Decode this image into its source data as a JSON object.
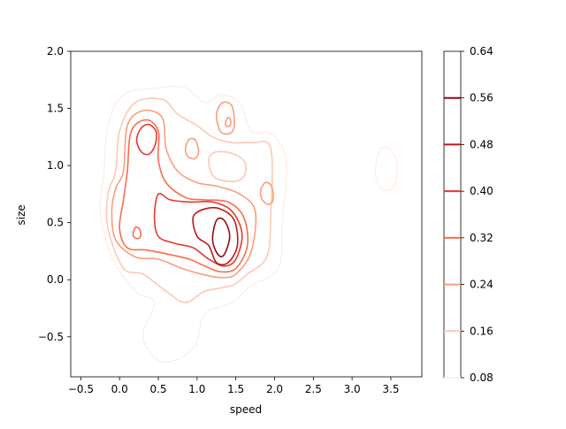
{
  "chart_data": {
    "type": "contour",
    "xlabel": "speed",
    "ylabel": "size",
    "xlim": [
      -0.63,
      3.9
    ],
    "ylim": [
      -0.85,
      2.0
    ],
    "x_ticks": [
      -0.5,
      0.0,
      0.5,
      1.0,
      1.5,
      2.0,
      2.5,
      3.0,
      3.5
    ],
    "x_tick_labels": [
      "−0.5",
      "0.0",
      "0.5",
      "1.0",
      "1.5",
      "2.0",
      "2.5",
      "3.0",
      "3.5"
    ],
    "y_ticks": [
      -0.5,
      0.0,
      0.5,
      1.0,
      1.5,
      2.0
    ],
    "y_tick_labels": [
      "−0.5",
      "0.0",
      "0.5",
      "1.0",
      "1.5",
      "2.0"
    ],
    "colorbar": {
      "ticks": [
        0.08,
        0.16,
        0.24,
        0.32,
        0.4,
        0.48,
        0.56,
        0.64
      ],
      "tick_labels": [
        "0.08",
        "0.16",
        "0.24",
        "0.32",
        "0.40",
        "0.48",
        "0.56",
        "0.64"
      ],
      "levels": [
        0.08,
        0.16,
        0.24,
        0.32,
        0.4,
        0.48,
        0.56
      ],
      "level_colors": [
        "#fff0e8",
        "#fcc9b4",
        "#fc9c7d",
        "#f96c4d",
        "#e33a2d",
        "#be171b",
        "#8b0f14"
      ]
    },
    "colormap": "Reds",
    "contours": [
      {
        "level": 0.08,
        "points": [
          [
            -0.2,
            0.95
          ],
          [
            -0.15,
            1.35
          ],
          [
            0.05,
            1.62
          ],
          [
            0.5,
            1.68
          ],
          [
            0.85,
            1.68
          ],
          [
            1.1,
            1.55
          ],
          [
            1.3,
            1.62
          ],
          [
            1.55,
            1.55
          ],
          [
            1.7,
            1.3
          ],
          [
            1.95,
            1.28
          ],
          [
            2.15,
            1.05
          ],
          [
            2.1,
            0.5
          ],
          [
            2.05,
            0.1
          ],
          [
            1.7,
            -0.05
          ],
          [
            1.45,
            -0.2
          ],
          [
            1.1,
            -0.3
          ],
          [
            0.95,
            -0.6
          ],
          [
            0.55,
            -0.72
          ],
          [
            0.3,
            -0.5
          ],
          [
            0.45,
            -0.2
          ],
          [
            0.2,
            -0.1
          ],
          [
            -0.1,
            0.2
          ],
          [
            -0.25,
            0.6
          ]
        ]
      },
      {
        "level": 0.16,
        "points": [
          [
            -0.05,
            0.95
          ],
          [
            0.0,
            1.3
          ],
          [
            0.2,
            1.55
          ],
          [
            0.55,
            1.58
          ],
          [
            0.75,
            1.45
          ],
          [
            1.0,
            1.35
          ],
          [
            1.2,
            1.25
          ],
          [
            1.45,
            1.2
          ],
          [
            1.7,
            1.2
          ],
          [
            1.95,
            1.15
          ],
          [
            1.95,
            0.55
          ],
          [
            1.9,
            0.2
          ],
          [
            1.65,
            0.05
          ],
          [
            1.45,
            -0.05
          ],
          [
            1.1,
            -0.1
          ],
          [
            0.85,
            -0.2
          ],
          [
            0.6,
            -0.1
          ],
          [
            0.3,
            0.05
          ],
          [
            0.05,
            0.1
          ],
          [
            -0.15,
            0.45
          ],
          [
            -0.15,
            0.75
          ]
        ]
      },
      {
        "level": 0.24,
        "points": [
          [
            0.05,
            0.95
          ],
          [
            0.1,
            1.35
          ],
          [
            0.3,
            1.48
          ],
          [
            0.55,
            1.42
          ],
          [
            0.6,
            1.15
          ],
          [
            0.75,
            0.95
          ],
          [
            1.0,
            0.85
          ],
          [
            1.25,
            0.82
          ],
          [
            1.55,
            0.75
          ],
          [
            1.75,
            0.6
          ],
          [
            1.7,
            0.25
          ],
          [
            1.5,
            0.05
          ],
          [
            1.3,
            0.02
          ],
          [
            1.05,
            0.05
          ],
          [
            0.8,
            0.1
          ],
          [
            0.5,
            0.18
          ],
          [
            0.2,
            0.2
          ],
          [
            -0.05,
            0.35
          ],
          [
            -0.1,
            0.6
          ],
          [
            -0.05,
            0.8
          ]
        ]
      },
      {
        "level": 0.32,
        "points": [
          [
            0.1,
            0.95
          ],
          [
            0.15,
            1.3
          ],
          [
            0.35,
            1.4
          ],
          [
            0.5,
            1.3
          ],
          [
            0.5,
            1.05
          ],
          [
            0.6,
            0.85
          ],
          [
            0.85,
            0.72
          ],
          [
            1.1,
            0.7
          ],
          [
            1.4,
            0.68
          ],
          [
            1.6,
            0.55
          ],
          [
            1.65,
            0.3
          ],
          [
            1.5,
            0.1
          ],
          [
            1.3,
            0.07
          ],
          [
            1.1,
            0.12
          ],
          [
            0.9,
            0.18
          ],
          [
            0.65,
            0.22
          ],
          [
            0.35,
            0.26
          ],
          [
            0.1,
            0.28
          ],
          [
            0.0,
            0.45
          ],
          [
            0.05,
            0.7
          ]
        ]
      },
      {
        "level": 0.4,
        "points": [
          [
            0.5,
            0.75
          ],
          [
            0.65,
            0.7
          ],
          [
            0.9,
            0.68
          ],
          [
            1.2,
            0.68
          ],
          [
            1.45,
            0.6
          ],
          [
            1.58,
            0.4
          ],
          [
            1.5,
            0.18
          ],
          [
            1.35,
            0.12
          ],
          [
            1.15,
            0.18
          ],
          [
            0.95,
            0.28
          ],
          [
            0.7,
            0.32
          ],
          [
            0.5,
            0.38
          ],
          [
            0.45,
            0.55
          ]
        ]
      },
      {
        "level": 0.48,
        "points": [
          [
            0.95,
            0.55
          ],
          [
            1.1,
            0.62
          ],
          [
            1.3,
            0.62
          ],
          [
            1.48,
            0.52
          ],
          [
            1.52,
            0.3
          ],
          [
            1.4,
            0.15
          ],
          [
            1.25,
            0.15
          ],
          [
            1.15,
            0.3
          ],
          [
            1.0,
            0.38
          ]
        ]
      },
      {
        "level": 0.56,
        "points": [
          [
            1.25,
            0.52
          ],
          [
            1.35,
            0.52
          ],
          [
            1.42,
            0.38
          ],
          [
            1.35,
            0.22
          ],
          [
            1.27,
            0.22
          ],
          [
            1.2,
            0.35
          ]
        ]
      },
      {
        "level": 0.4,
        "points": [
          [
            0.22,
            1.22
          ],
          [
            0.27,
            1.32
          ],
          [
            0.37,
            1.36
          ],
          [
            0.47,
            1.3
          ],
          [
            0.46,
            1.18
          ],
          [
            0.38,
            1.1
          ],
          [
            0.28,
            1.12
          ]
        ]
      },
      {
        "level": 0.24,
        "points": [
          [
            1.25,
            1.45
          ],
          [
            1.33,
            1.55
          ],
          [
            1.45,
            1.52
          ],
          [
            1.48,
            1.35
          ],
          [
            1.42,
            1.28
          ],
          [
            1.3,
            1.3
          ]
        ]
      },
      {
        "level": 0.24,
        "points": [
          [
            0.85,
            1.15
          ],
          [
            0.9,
            1.23
          ],
          [
            0.98,
            1.22
          ],
          [
            1.02,
            1.12
          ],
          [
            0.97,
            1.06
          ],
          [
            0.88,
            1.08
          ]
        ]
      },
      {
        "level": 0.24,
        "points": [
          [
            1.82,
            0.78
          ],
          [
            1.88,
            0.85
          ],
          [
            1.96,
            0.82
          ],
          [
            1.98,
            0.7
          ],
          [
            1.92,
            0.66
          ],
          [
            1.84,
            0.7
          ]
        ]
      },
      {
        "level": 0.32,
        "points": [
          [
            0.18,
            0.42
          ],
          [
            0.21,
            0.46
          ],
          [
            0.26,
            0.44
          ],
          [
            0.27,
            0.38
          ],
          [
            0.23,
            0.36
          ],
          [
            0.18,
            0.38
          ]
        ]
      },
      {
        "level": 0.16,
        "points": [
          [
            1.15,
            1.05
          ],
          [
            1.25,
            1.12
          ],
          [
            1.48,
            1.1
          ],
          [
            1.62,
            1.02
          ],
          [
            1.6,
            0.9
          ],
          [
            1.45,
            0.86
          ],
          [
            1.22,
            0.9
          ]
        ]
      },
      {
        "level": 0.24,
        "points": [
          [
            1.37,
            1.38
          ],
          [
            1.4,
            1.42
          ],
          [
            1.43,
            1.4
          ],
          [
            1.43,
            1.36
          ],
          [
            1.4,
            1.34
          ],
          [
            1.37,
            1.35
          ]
        ]
      },
      {
        "level": 0.08,
        "points": [
          [
            3.3,
            0.95
          ],
          [
            3.35,
            1.12
          ],
          [
            3.45,
            1.16
          ],
          [
            3.57,
            1.05
          ],
          [
            3.56,
            0.85
          ],
          [
            3.45,
            0.78
          ],
          [
            3.35,
            0.82
          ]
        ]
      }
    ]
  }
}
